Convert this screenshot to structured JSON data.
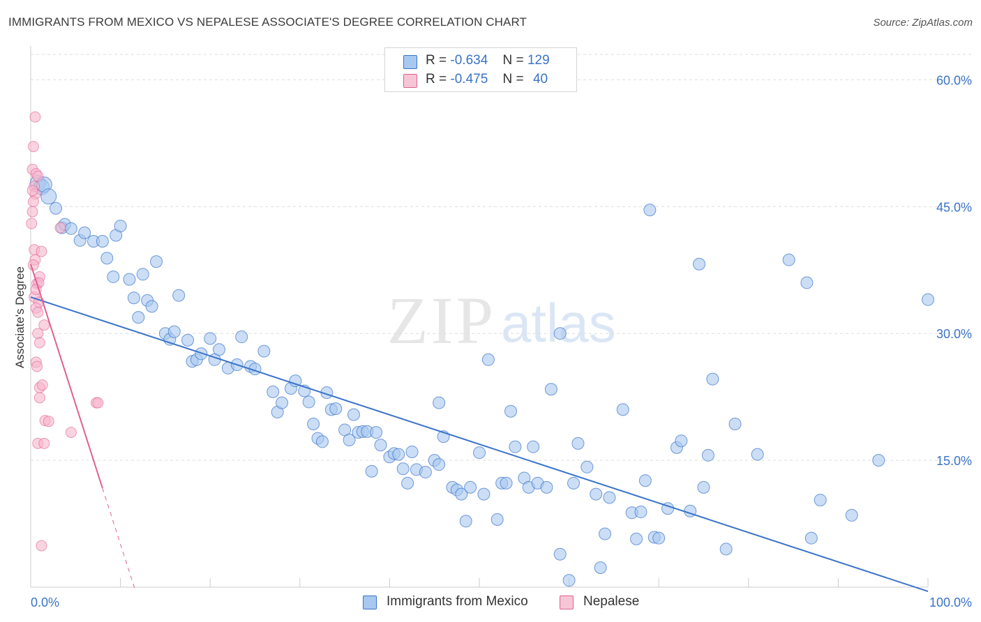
{
  "title": "IMMIGRANTS FROM MEXICO VS NEPALESE ASSOCIATE'S DEGREE CORRELATION CHART",
  "source": "Source: ZipAtlas.com",
  "watermark": {
    "zip": "ZIP",
    "atlas": "atlas"
  },
  "colors": {
    "blue": "#3a73c8",
    "blue_fill": "#a9c8f0",
    "pink": "#e06090",
    "pink_fill": "#f7b6cb",
    "grid": "#dedede"
  },
  "legend": {
    "r_label": "R =",
    "n_label": "N =",
    "rows": [
      {
        "r": "-0.634",
        "n": "129"
      },
      {
        "r": "-0.475",
        "n": "40"
      }
    ]
  },
  "chart_data": {
    "type": "scatter",
    "title": "IMMIGRANTS FROM MEXICO VS NEPALESE ASSOCIATE'S DEGREE CORRELATION CHART",
    "xlabel": "",
    "ylabel": "Associate's Degree",
    "xlim": [
      0,
      100
    ],
    "ylim": [
      0,
      63
    ],
    "x_tick_labels": [
      "0.0%",
      "100.0%"
    ],
    "y_ticks": [
      15,
      30,
      45,
      60
    ],
    "y_tick_labels": [
      "15.0%",
      "30.0%",
      "45.0%",
      "60.0%"
    ],
    "grid": true,
    "legend_position": "top-center",
    "series": [
      {
        "name": "Immigrants from Mexico",
        "r": -0.634,
        "n": 129,
        "trend": [
          [
            0,
            34.3
          ],
          [
            100,
            -0.5
          ]
        ],
        "points": [
          [
            0.8,
            47.8
          ],
          [
            1.2,
            47.3
          ],
          [
            1.5,
            47.6
          ],
          [
            2.0,
            46.2
          ],
          [
            2.8,
            44.8
          ],
          [
            3.5,
            42.5
          ],
          [
            3.8,
            42.9
          ],
          [
            4.5,
            42.4
          ],
          [
            5.5,
            41.0
          ],
          [
            6.0,
            41.9
          ],
          [
            7.0,
            40.9
          ],
          [
            8.0,
            40.9
          ],
          [
            8.5,
            38.9
          ],
          [
            9.2,
            36.7
          ],
          [
            9.5,
            41.6
          ],
          [
            10.0,
            42.7
          ],
          [
            11.0,
            36.4
          ],
          [
            11.5,
            34.2
          ],
          [
            12.0,
            31.9
          ],
          [
            12.5,
            37.0
          ],
          [
            13.0,
            33.9
          ],
          [
            13.5,
            33.2
          ],
          [
            14.0,
            38.5
          ],
          [
            15.0,
            30.0
          ],
          [
            15.5,
            29.3
          ],
          [
            16.0,
            30.2
          ],
          [
            16.5,
            34.5
          ],
          [
            17.5,
            29.2
          ],
          [
            18.0,
            26.7
          ],
          [
            18.5,
            26.9
          ],
          [
            19.0,
            27.6
          ],
          [
            20.0,
            29.4
          ],
          [
            20.5,
            26.9
          ],
          [
            21.0,
            28.1
          ],
          [
            22.0,
            25.9
          ],
          [
            23.0,
            26.3
          ],
          [
            23.5,
            29.6
          ],
          [
            24.5,
            26.1
          ],
          [
            25.0,
            25.8
          ],
          [
            26.0,
            27.9
          ],
          [
            27.0,
            23.1
          ],
          [
            27.5,
            20.7
          ],
          [
            28.0,
            21.8
          ],
          [
            29.0,
            23.5
          ],
          [
            29.5,
            24.4
          ],
          [
            30.5,
            23.2
          ],
          [
            31.0,
            21.9
          ],
          [
            31.5,
            19.3
          ],
          [
            32.0,
            17.6
          ],
          [
            32.5,
            17.2
          ],
          [
            33.0,
            23.0
          ],
          [
            33.5,
            21.0
          ],
          [
            34.0,
            21.1
          ],
          [
            35.0,
            18.6
          ],
          [
            35.5,
            17.4
          ],
          [
            36.0,
            20.4
          ],
          [
            36.5,
            18.3
          ],
          [
            37.0,
            18.4
          ],
          [
            37.5,
            18.4
          ],
          [
            38.0,
            13.7
          ],
          [
            38.5,
            18.3
          ],
          [
            39.0,
            16.8
          ],
          [
            40.0,
            15.4
          ],
          [
            40.5,
            15.8
          ],
          [
            41.0,
            15.7
          ],
          [
            41.5,
            14.0
          ],
          [
            42.0,
            12.3
          ],
          [
            42.5,
            16.0
          ],
          [
            43.0,
            13.9
          ],
          [
            44.0,
            13.6
          ],
          [
            45.0,
            15.0
          ],
          [
            45.5,
            14.5
          ],
          [
            45.5,
            21.8
          ],
          [
            46.0,
            17.8
          ],
          [
            47.0,
            11.8
          ],
          [
            47.5,
            11.5
          ],
          [
            48.0,
            11.0
          ],
          [
            48.5,
            7.8
          ],
          [
            49.0,
            11.8
          ],
          [
            50.0,
            15.9
          ],
          [
            50.5,
            11.0
          ],
          [
            51.0,
            26.9
          ],
          [
            52.0,
            8.0
          ],
          [
            52.5,
            12.3
          ],
          [
            53.0,
            12.3
          ],
          [
            53.5,
            20.8
          ],
          [
            54.0,
            16.6
          ],
          [
            55.0,
            12.9
          ],
          [
            55.5,
            11.8
          ],
          [
            56.0,
            16.6
          ],
          [
            56.5,
            12.3
          ],
          [
            57.5,
            11.8
          ],
          [
            58.0,
            23.4
          ],
          [
            59.0,
            3.9
          ],
          [
            59.0,
            30.0
          ],
          [
            60.0,
            0.8
          ],
          [
            60.5,
            12.3
          ],
          [
            61.0,
            17.0
          ],
          [
            62.0,
            14.2
          ],
          [
            63.0,
            11.0
          ],
          [
            63.5,
            2.3
          ],
          [
            64.0,
            6.3
          ],
          [
            64.5,
            10.6
          ],
          [
            66.0,
            21.0
          ],
          [
            67.0,
            8.8
          ],
          [
            67.5,
            5.7
          ],
          [
            68.0,
            8.9
          ],
          [
            68.5,
            12.6
          ],
          [
            69.0,
            44.6
          ],
          [
            69.5,
            5.9
          ],
          [
            70.0,
            5.8
          ],
          [
            71.0,
            9.3
          ],
          [
            72.0,
            16.5
          ],
          [
            72.5,
            17.3
          ],
          [
            73.5,
            9.0
          ],
          [
            74.5,
            38.2
          ],
          [
            75.0,
            11.8
          ],
          [
            75.5,
            15.6
          ],
          [
            76.0,
            24.6
          ],
          [
            77.5,
            4.5
          ],
          [
            78.5,
            19.3
          ],
          [
            81.0,
            15.7
          ],
          [
            84.5,
            38.7
          ],
          [
            86.5,
            36.0
          ],
          [
            87.0,
            5.8
          ],
          [
            88.0,
            10.3
          ],
          [
            91.5,
            8.5
          ],
          [
            94.5,
            15.0
          ],
          [
            100.0,
            34.0
          ]
        ]
      },
      {
        "name": "Nepalese",
        "r": -0.475,
        "n": 40,
        "trend": [
          [
            0,
            38.2
          ],
          [
            8.0,
            11.7
          ]
        ],
        "trend_dashed": [
          [
            8.0,
            11.7
          ],
          [
            11.6,
            -0.2
          ]
        ],
        "points": [
          [
            0.5,
            55.6
          ],
          [
            0.3,
            52.1
          ],
          [
            0.2,
            49.4
          ],
          [
            0.6,
            48.9
          ],
          [
            0.8,
            48.6
          ],
          [
            0.4,
            47.4
          ],
          [
            0.5,
            46.5
          ],
          [
            0.3,
            45.6
          ],
          [
            0.2,
            44.4
          ],
          [
            0.1,
            43.0
          ],
          [
            0.4,
            39.9
          ],
          [
            1.2,
            39.7
          ],
          [
            0.5,
            38.7
          ],
          [
            0.3,
            38.1
          ],
          [
            1.0,
            36.7
          ],
          [
            0.7,
            35.9
          ],
          [
            0.4,
            34.3
          ],
          [
            0.9,
            33.7
          ],
          [
            0.6,
            33.0
          ],
          [
            0.8,
            32.5
          ],
          [
            1.5,
            31.0
          ],
          [
            0.8,
            30.0
          ],
          [
            1.0,
            28.9
          ],
          [
            0.6,
            26.6
          ],
          [
            0.7,
            26.1
          ],
          [
            1.0,
            23.6
          ],
          [
            1.3,
            23.9
          ],
          [
            1.0,
            22.4
          ],
          [
            1.6,
            19.7
          ],
          [
            2.0,
            19.6
          ],
          [
            0.8,
            17.0
          ],
          [
            1.5,
            17.0
          ],
          [
            4.5,
            18.3
          ],
          [
            7.3,
            21.8
          ],
          [
            7.5,
            21.8
          ],
          [
            1.2,
            4.9
          ],
          [
            0.2,
            46.9
          ],
          [
            3.3,
            42.5
          ],
          [
            0.9,
            36.0
          ],
          [
            0.6,
            35.2
          ]
        ]
      }
    ]
  },
  "bottom_legend": [
    "Immigrants from Mexico",
    "Nepalese"
  ]
}
